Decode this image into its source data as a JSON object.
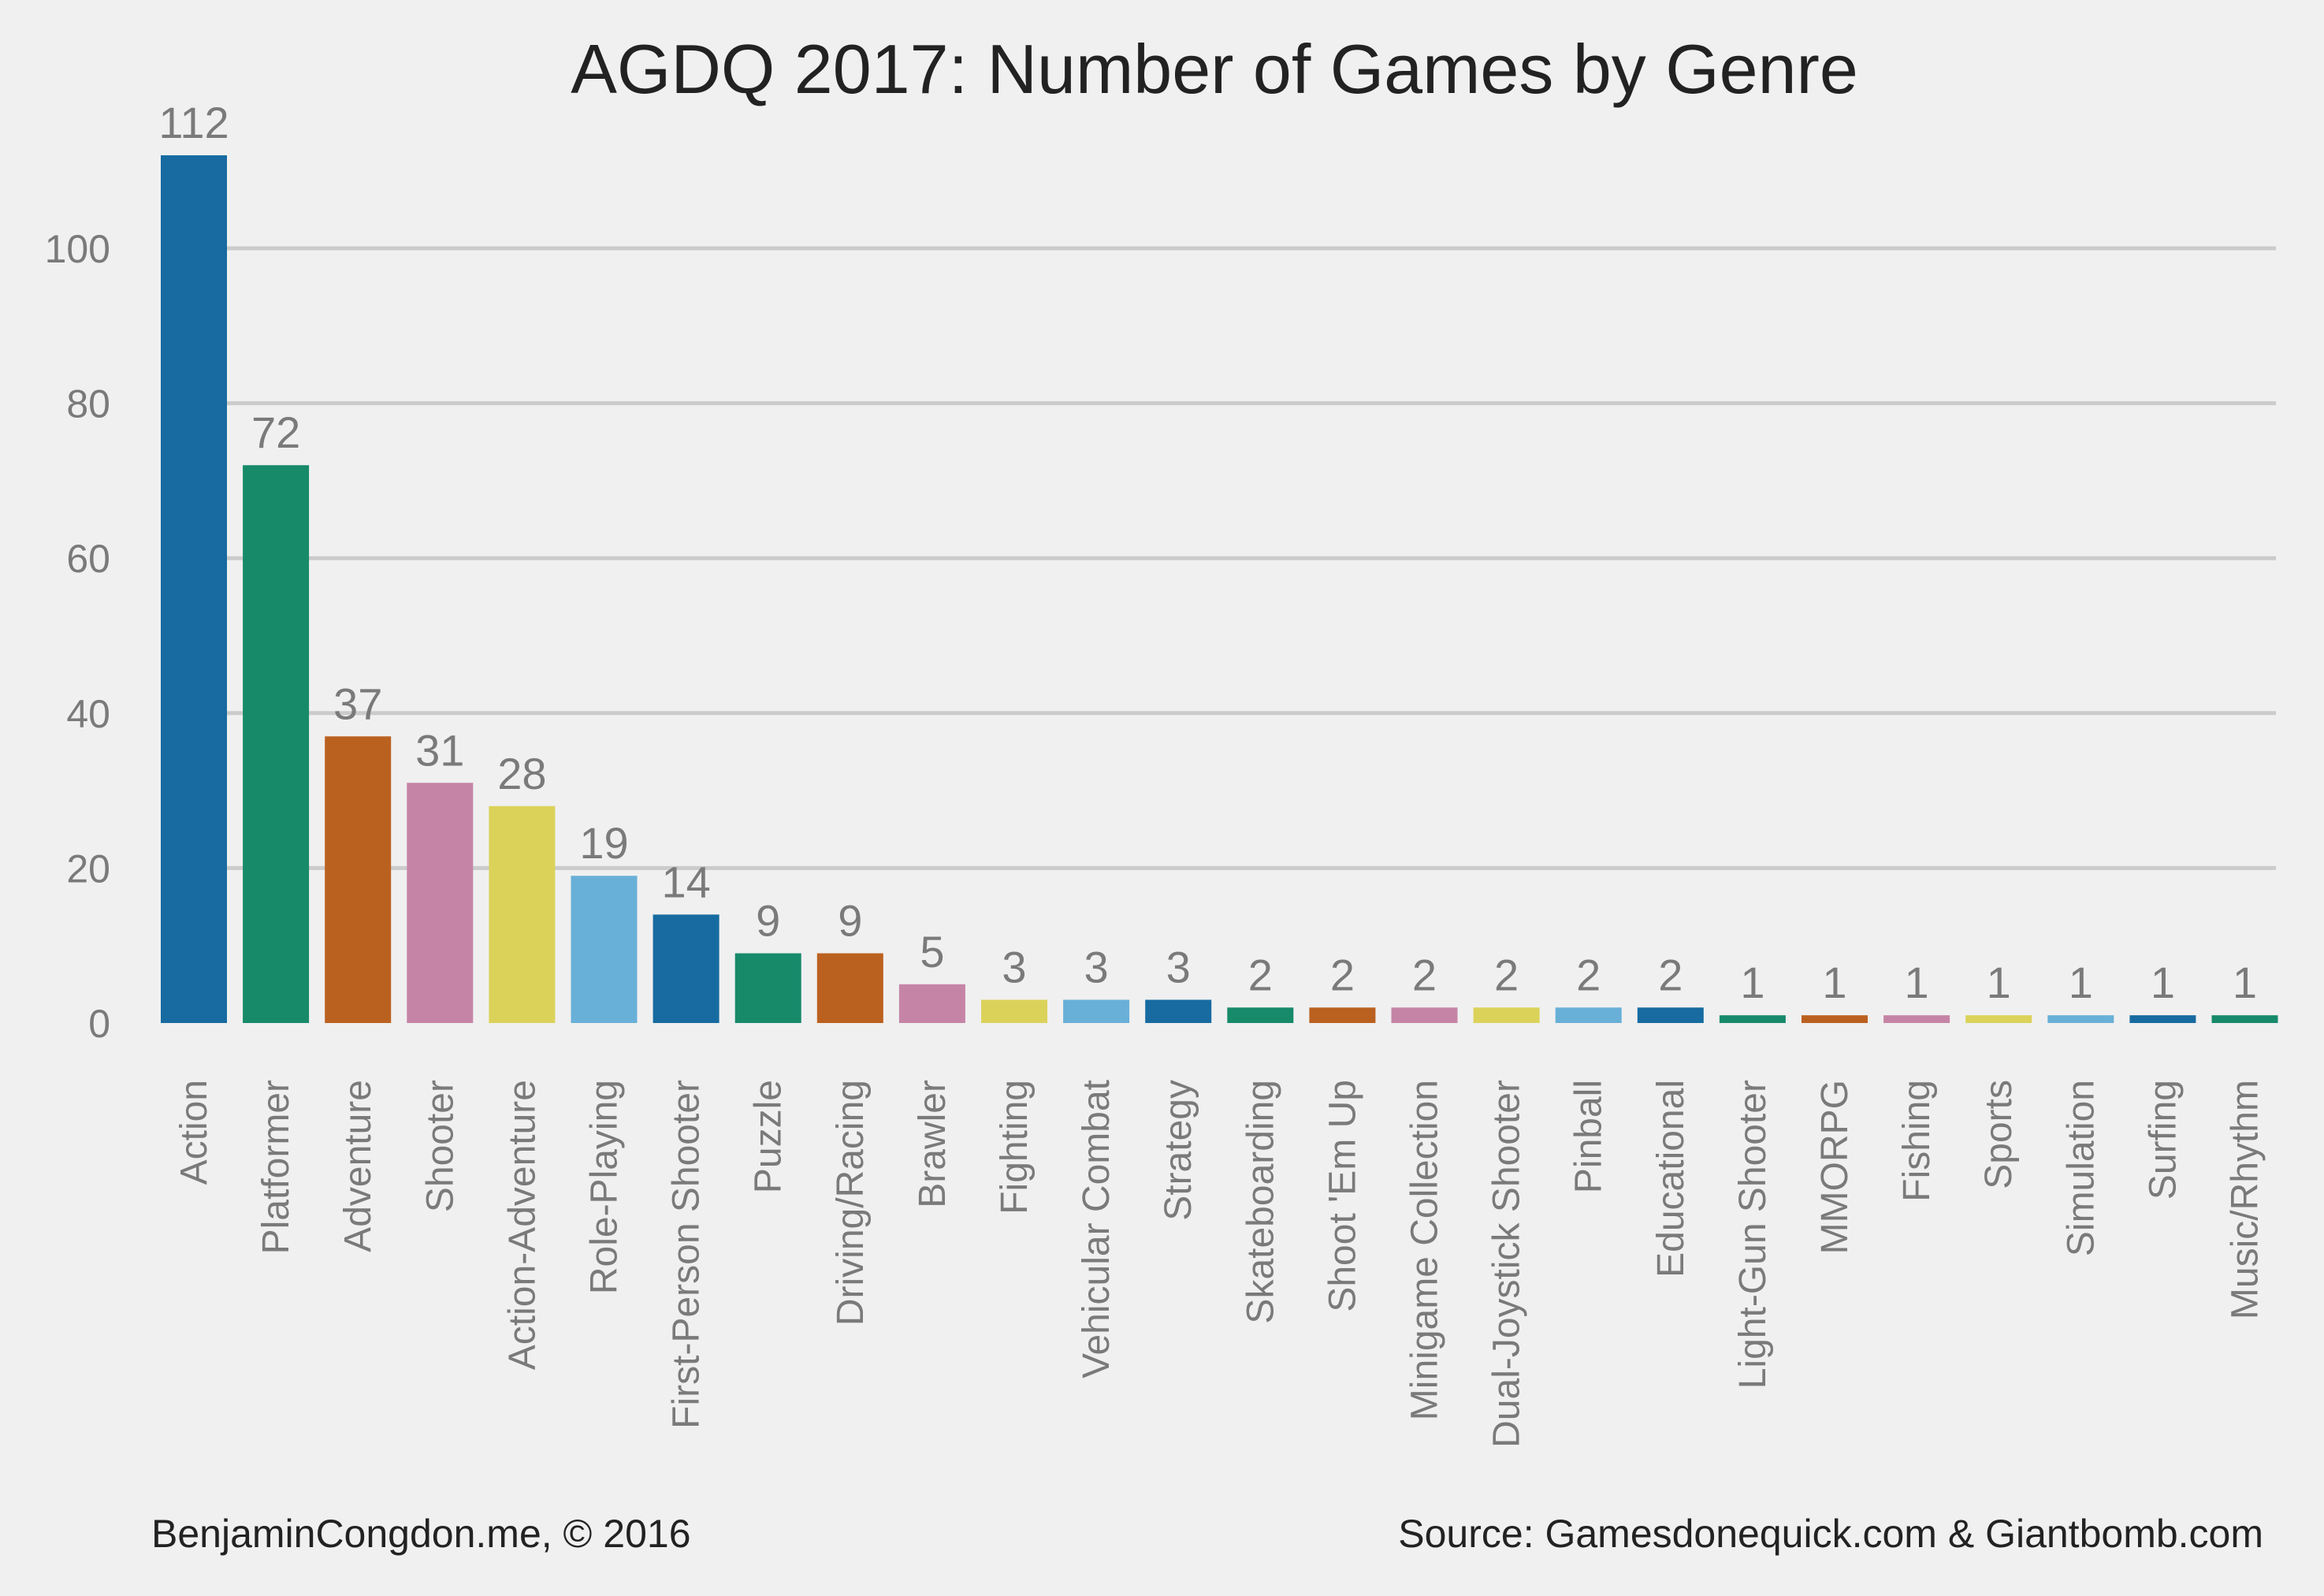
{
  "chart_data": {
    "type": "bar",
    "title": "AGDQ 2017: Number of Games by Genre",
    "xlabel": "",
    "ylabel": "",
    "categories": [
      "Action",
      "Platformer",
      "Adventure",
      "Shooter",
      "Action-Adventure",
      "Role-Playing",
      "First-Person Shooter",
      "Puzzle",
      "Driving/Racing",
      "Brawler",
      "Fighting",
      "Vehicular Combat",
      "Strategy",
      "Skateboarding",
      "Shoot 'Em Up",
      "Minigame Collection",
      "Dual-Joystick Shooter",
      "Pinball",
      "Educational",
      "Light-Gun Shooter",
      "MMORPG",
      "Fishing",
      "Sports",
      "Simulation",
      "Surfing",
      "Music/Rhythm"
    ],
    "values": [
      112,
      72,
      37,
      31,
      28,
      19,
      14,
      9,
      9,
      5,
      3,
      3,
      3,
      2,
      2,
      2,
      2,
      2,
      2,
      1,
      1,
      1,
      1,
      1,
      1,
      1
    ],
    "ylim": [
      0,
      120
    ],
    "yticks": [
      0,
      20,
      40,
      60,
      80,
      100
    ],
    "grid": true,
    "colors": [
      "#176ba0",
      "#178a6a",
      "#bb6120",
      "#c584a6",
      "#dbd25a",
      "#68b0d8"
    ]
  },
  "footer": {
    "left": "BenjaminCongdon.me, © 2016",
    "right": "Source: Gamesdonequick.com & Giantbomb.com"
  }
}
